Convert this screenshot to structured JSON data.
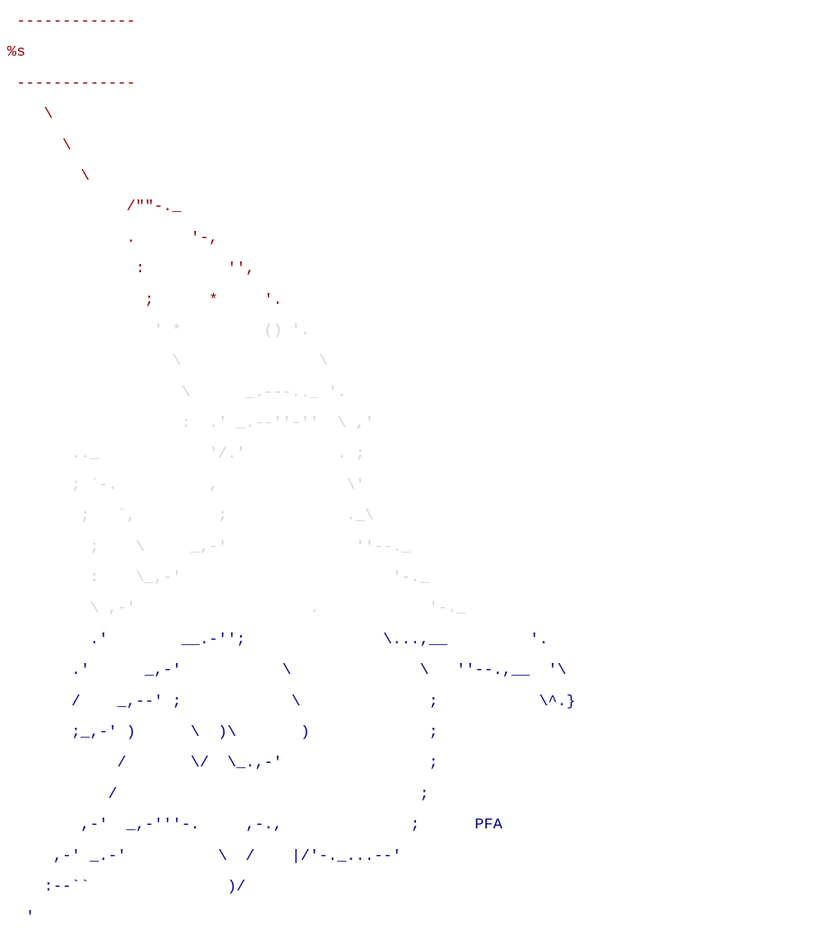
{
  "colors": {
    "red": "#8b0000",
    "grey": "#d3d3d3",
    "blue": "#000080"
  },
  "art_lines": [
    [
      {
        "t": " -------------",
        "c": "red"
      }
    ],
    [
      {
        "t": "%s",
        "c": "red"
      }
    ],
    [
      {
        "t": " -------------",
        "c": "red"
      }
    ],
    [
      {
        "t": "    \\",
        "c": "red"
      }
    ],
    [
      {
        "t": "      \\",
        "c": "red"
      }
    ],
    [
      {
        "t": "        \\",
        "c": "red"
      }
    ],
    [
      {
        "t": "             /\"\"-._",
        "c": "red"
      }
    ],
    [
      {
        "t": "             .      '-,",
        "c": "red"
      }
    ],
    [
      {
        "t": "              :         '',",
        "c": "red"
      }
    ],
    [
      {
        "t": "               ;      *     '.",
        "c": "red"
      }
    ],
    [
      {
        "t": "                ' *         () '.",
        "c": "grey"
      }
    ],
    [
      {
        "t": "                  \\               \\",
        "c": "grey"
      }
    ],
    [
      {
        "t": "                   \\      _.---.._ '.",
        "c": "grey"
      }
    ],
    [
      {
        "t": "                   :  .' _.--''-''  \\ ,'",
        "c": "grey"
      }
    ],
    [
      {
        "t": "       .._            '/.'          . ;",
        "c": "grey"
      }
    ],
    [
      {
        "t": "       ; `-.          ,              \\'",
        "c": "grey"
      }
    ],
    [
      {
        "t": "        ;   `,         ;             ._\\",
        "c": "grey"
      }
    ],
    [
      {
        "t": "         ;    \\     _,-'              ''--._",
        "c": "grey"
      }
    ],
    [
      {
        "t": "         :    \\_,-'                       '-._",
        "c": "grey"
      }
    ],
    [
      {
        "t": "         \\ ,-'                   .            '-._",
        "c": "grey"
      }
    ],
    [
      {
        "t": "         .'",
        "c": "blue"
      },
      {
        "t": "        __.-'';",
        "c": "blue"
      },
      {
        "t": "               \\...,__         '.",
        "c": "blue"
      }
    ],
    [
      {
        "t": "       .'      _,-'           \\              \\   ''--.,__  '\\",
        "c": "blue"
      }
    ],
    [
      {
        "t": "       /    _,--' ;            \\              ;           \\^.}",
        "c": "blue"
      }
    ],
    [
      {
        "t": "       ;_,-' )      \\  )\\       )             ;",
        "c": "blue"
      }
    ],
    [
      {
        "t": "            /       \\/  \\_.,-'                ;",
        "c": "blue"
      }
    ],
    [
      {
        "t": "           /                                 ;",
        "c": "blue"
      }
    ],
    [
      {
        "t": "        ,-'  _,-'''-.     ,-.,              ;      PFA",
        "c": "blue"
      }
    ],
    [
      {
        "t": "     ,-' _.-'          \\  /    |/'-._...--'",
        "c": "blue"
      }
    ],
    [
      {
        "t": "    :--``               )/",
        "c": "blue"
      }
    ],
    [
      {
        "t": "  '",
        "c": "blue"
      }
    ]
  ]
}
